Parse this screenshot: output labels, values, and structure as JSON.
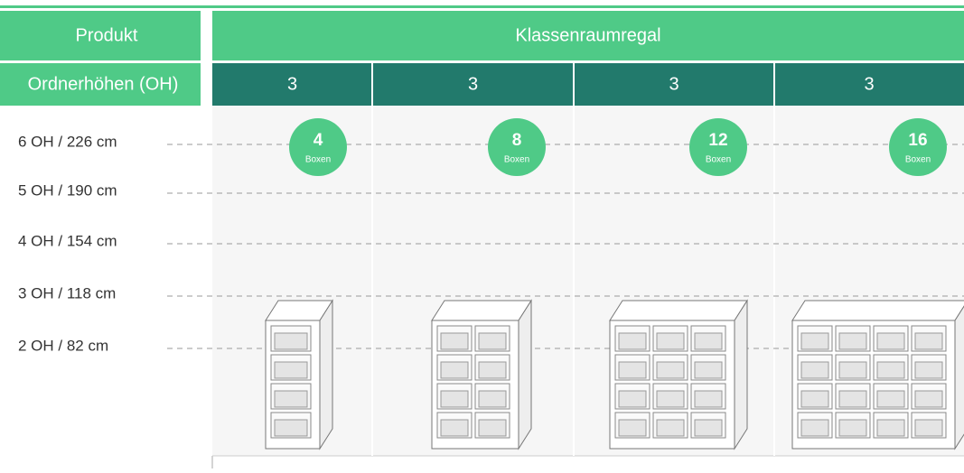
{
  "header": {
    "product_label": "Produkt",
    "product": "Klassenraumregal",
    "height_label": "Ordnerhöhen (OH)"
  },
  "rows": [
    "6 OH / 226 cm",
    "5 OH / 190 cm",
    "4 OH / 154 cm",
    "3 OH / 118 cm",
    "2 OH / 82 cm"
  ],
  "columns": [
    {
      "folder_heights": "3",
      "boxes": "4",
      "unit": "Boxen"
    },
    {
      "folder_heights": "3",
      "boxes": "8",
      "unit": "Boxen"
    },
    {
      "folder_heights": "3",
      "boxes": "12",
      "unit": "Boxen"
    },
    {
      "folder_heights": "3",
      "boxes": "16",
      "unit": "Boxen"
    }
  ]
}
